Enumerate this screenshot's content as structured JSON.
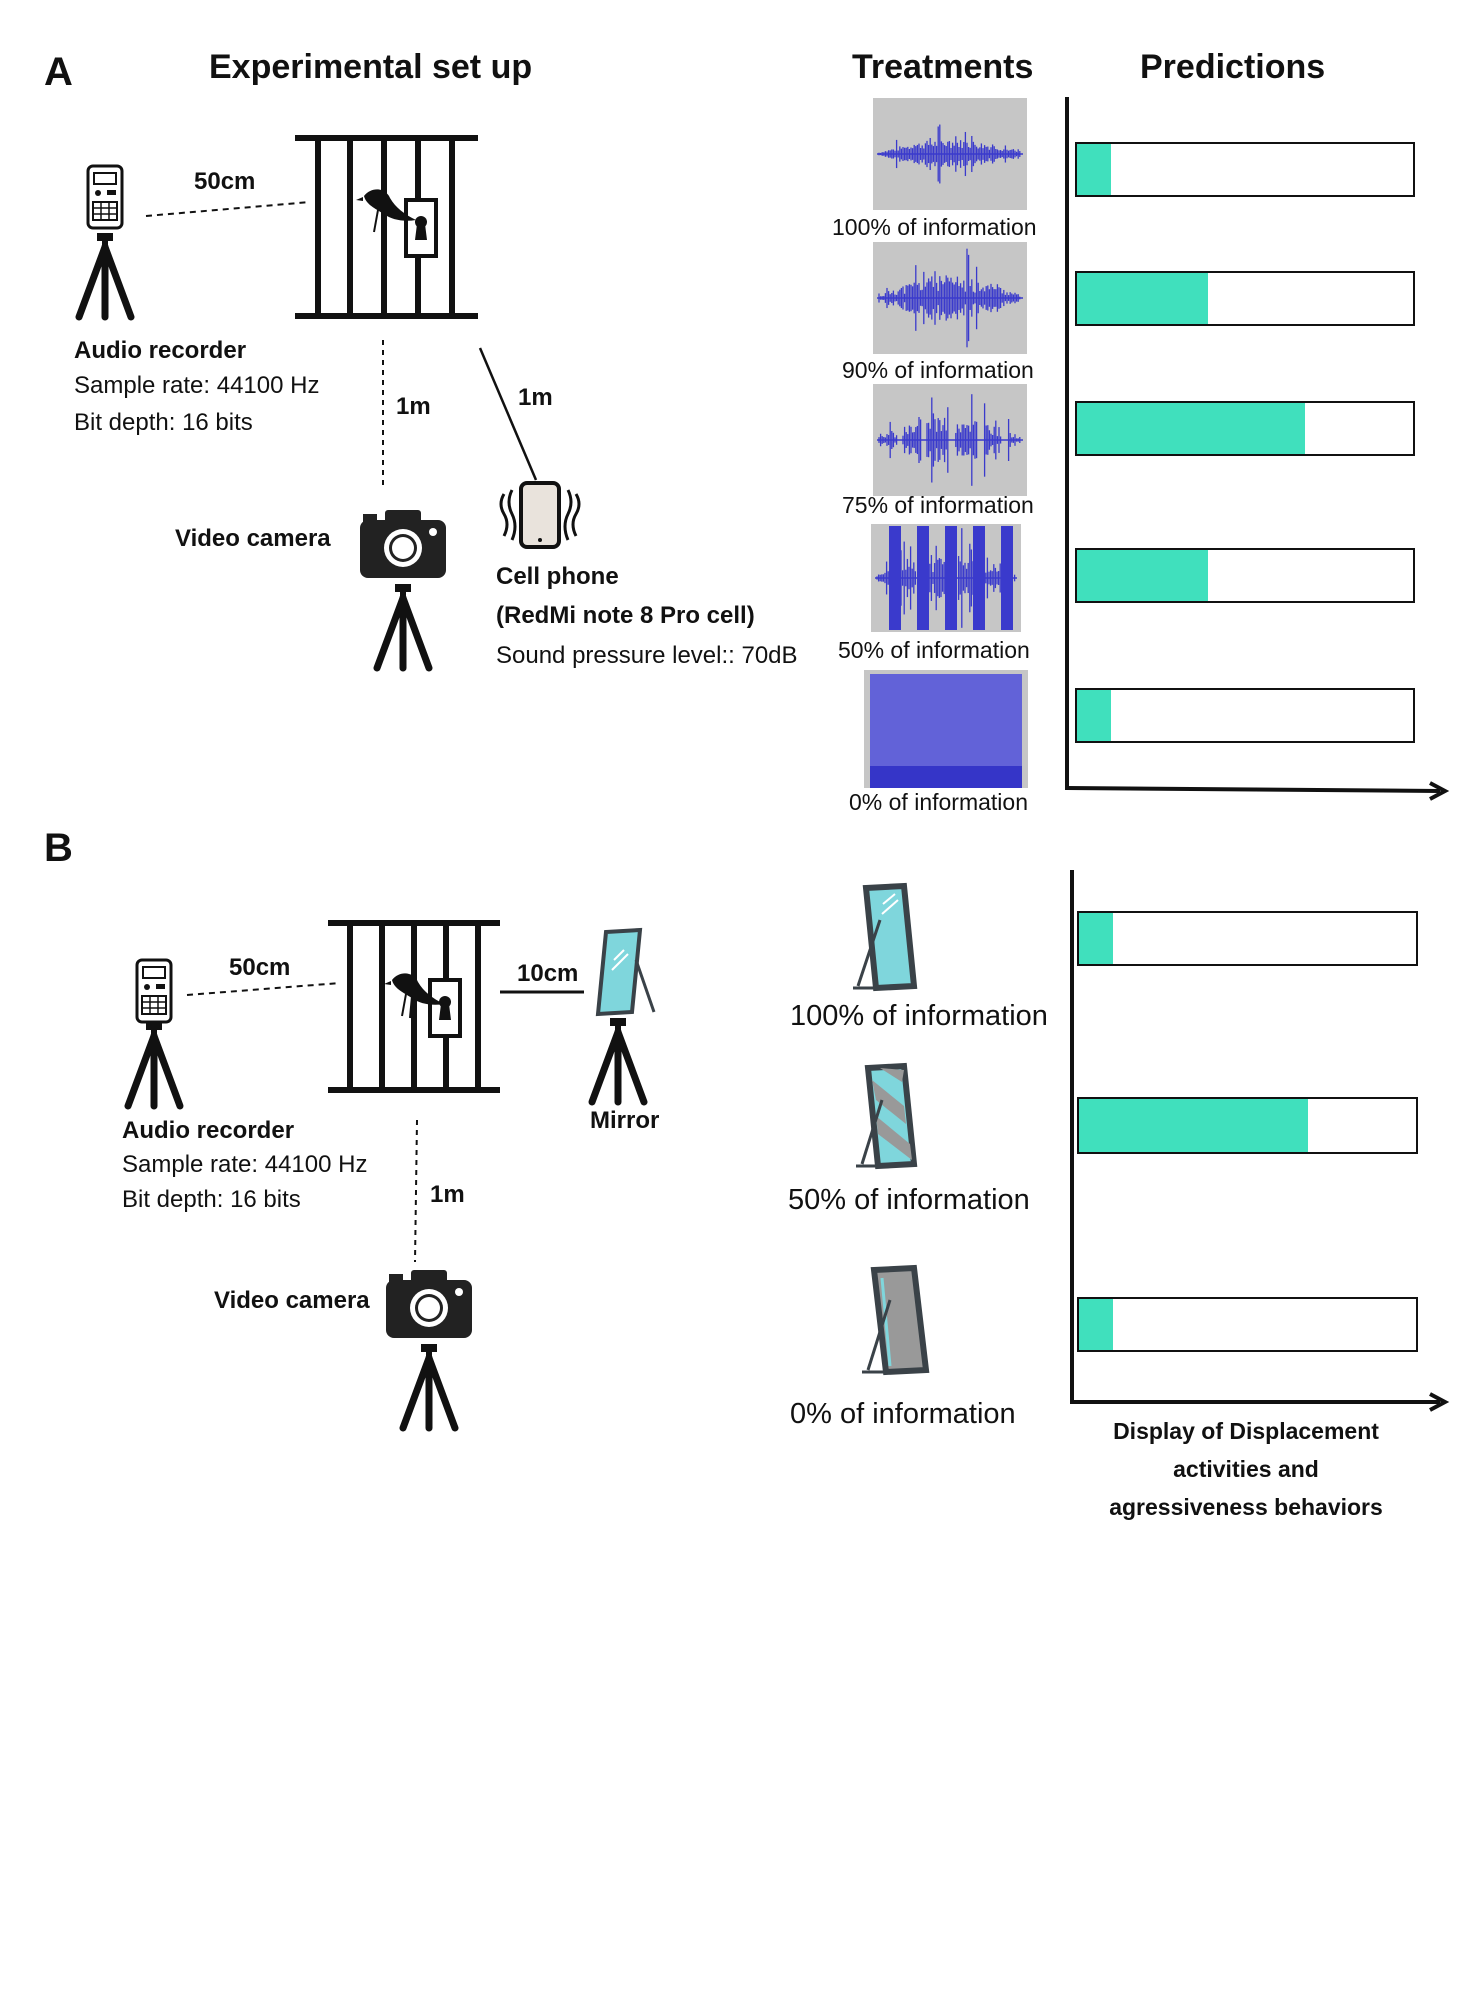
{
  "colors": {
    "accent": "#40e0bd",
    "wave": "#3a3acc",
    "wave_bg": "#c6c6c6",
    "mirror": "#7fd6dc",
    "frame": "#3a4248"
  },
  "panel_a": {
    "letter": "A",
    "setup_title": "Experimental set up",
    "treatments_title": "Treatments",
    "predictions_title": "Predictions",
    "distance_recorder": "50cm",
    "distance_camera": "1m",
    "distance_phone": "1m",
    "recorder": {
      "name": "Audio recorder",
      "sample_rate": "Sample rate: 44100 Hz",
      "bit_depth": "Bit depth: 16 bits"
    },
    "camera": "Video camera",
    "phone": {
      "name": "Cell phone",
      "model": "(RedMi note 8 Pro cell)",
      "spl": "Sound pressure level:: 70dB"
    },
    "treatments": [
      {
        "label": "100% of information",
        "prediction": 0.1
      },
      {
        "label": "90% of information",
        "prediction": 0.39
      },
      {
        "label": "75% of information",
        "prediction": 0.68
      },
      {
        "label": "50% of information",
        "prediction": 0.39
      },
      {
        "label": "0% of information",
        "prediction": 0.1
      }
    ]
  },
  "panel_b": {
    "letter": "B",
    "distance_recorder": "50cm",
    "distance_mirror": "10cm",
    "distance_camera": "1m",
    "mirror_label": "Mirror",
    "recorder": {
      "name": "Audio recorder",
      "sample_rate": "Sample rate: 44100 Hz",
      "bit_depth": "Bit depth: 16 bits"
    },
    "camera": "Video camera",
    "treatments": [
      {
        "label": "100% of information",
        "prediction": 0.1
      },
      {
        "label": "50% of information",
        "prediction": 0.68
      },
      {
        "label": "0% of information",
        "prediction": 0.1
      }
    ],
    "axis_caption": [
      "Display of Displacement",
      "activities and",
      "agressiveness behaviors"
    ]
  }
}
